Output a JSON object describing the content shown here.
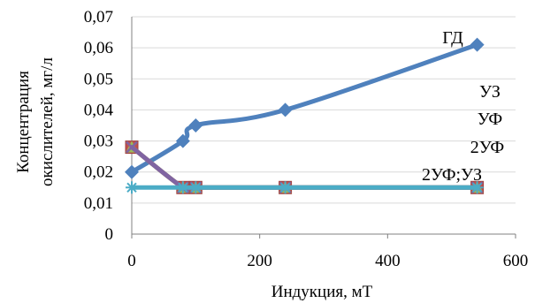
{
  "chart_data": {
    "type": "scatter",
    "title": "",
    "xlabel": "Индукция, мТ",
    "ylabel": [
      "Концентрация",
      "окислителей, мг/л"
    ],
    "xlim": [
      0,
      600
    ],
    "ylim": [
      0,
      0.07
    ],
    "x_ticks": [
      0,
      200,
      400,
      600
    ],
    "y_ticks": [
      0,
      0.01,
      0.02,
      0.03,
      0.04,
      0.05,
      0.06,
      0.07
    ],
    "x_tick_labels": [
      "0",
      "200",
      "400",
      "600"
    ],
    "y_tick_labels": [
      "0",
      "0,01",
      "0,02",
      "0,03",
      "0,04",
      "0,05",
      "0,06",
      "0,07"
    ],
    "grid": "horizontal",
    "legend": "none",
    "series": [
      {
        "name": "ГД",
        "color": "#4F81BD",
        "marker": "diamond",
        "points": [
          [
            0,
            0.02
          ],
          [
            80,
            0.03
          ],
          [
            100,
            0.035
          ],
          [
            240,
            0.04
          ],
          [
            540,
            0.061
          ]
        ]
      },
      {
        "name": "УЗ",
        "color": "#C0504D",
        "marker": "square",
        "points": [
          [
            0,
            0.028
          ],
          [
            80,
            0.015
          ],
          [
            100,
            0.015
          ],
          [
            240,
            0.015
          ],
          [
            540,
            0.015
          ]
        ]
      },
      {
        "name": "УФ",
        "color": "#9BBB59",
        "marker": "triangle",
        "points": [
          [
            0,
            0.028
          ],
          [
            80,
            0.015
          ],
          [
            100,
            0.015
          ],
          [
            240,
            0.015
          ],
          [
            540,
            0.015
          ]
        ]
      },
      {
        "name": "2УФ",
        "color": "#8064A2",
        "marker": "x",
        "points": [
          [
            0,
            0.028
          ],
          [
            80,
            0.015
          ],
          [
            100,
            0.015
          ],
          [
            240,
            0.015
          ],
          [
            540,
            0.015
          ]
        ]
      },
      {
        "name": "2УФ;УЗ",
        "color": "#4BACC6",
        "marker": "star",
        "points": [
          [
            0,
            0.015
          ],
          [
            80,
            0.015
          ],
          [
            100,
            0.015
          ],
          [
            240,
            0.015
          ],
          [
            540,
            0.015
          ]
        ]
      }
    ]
  }
}
